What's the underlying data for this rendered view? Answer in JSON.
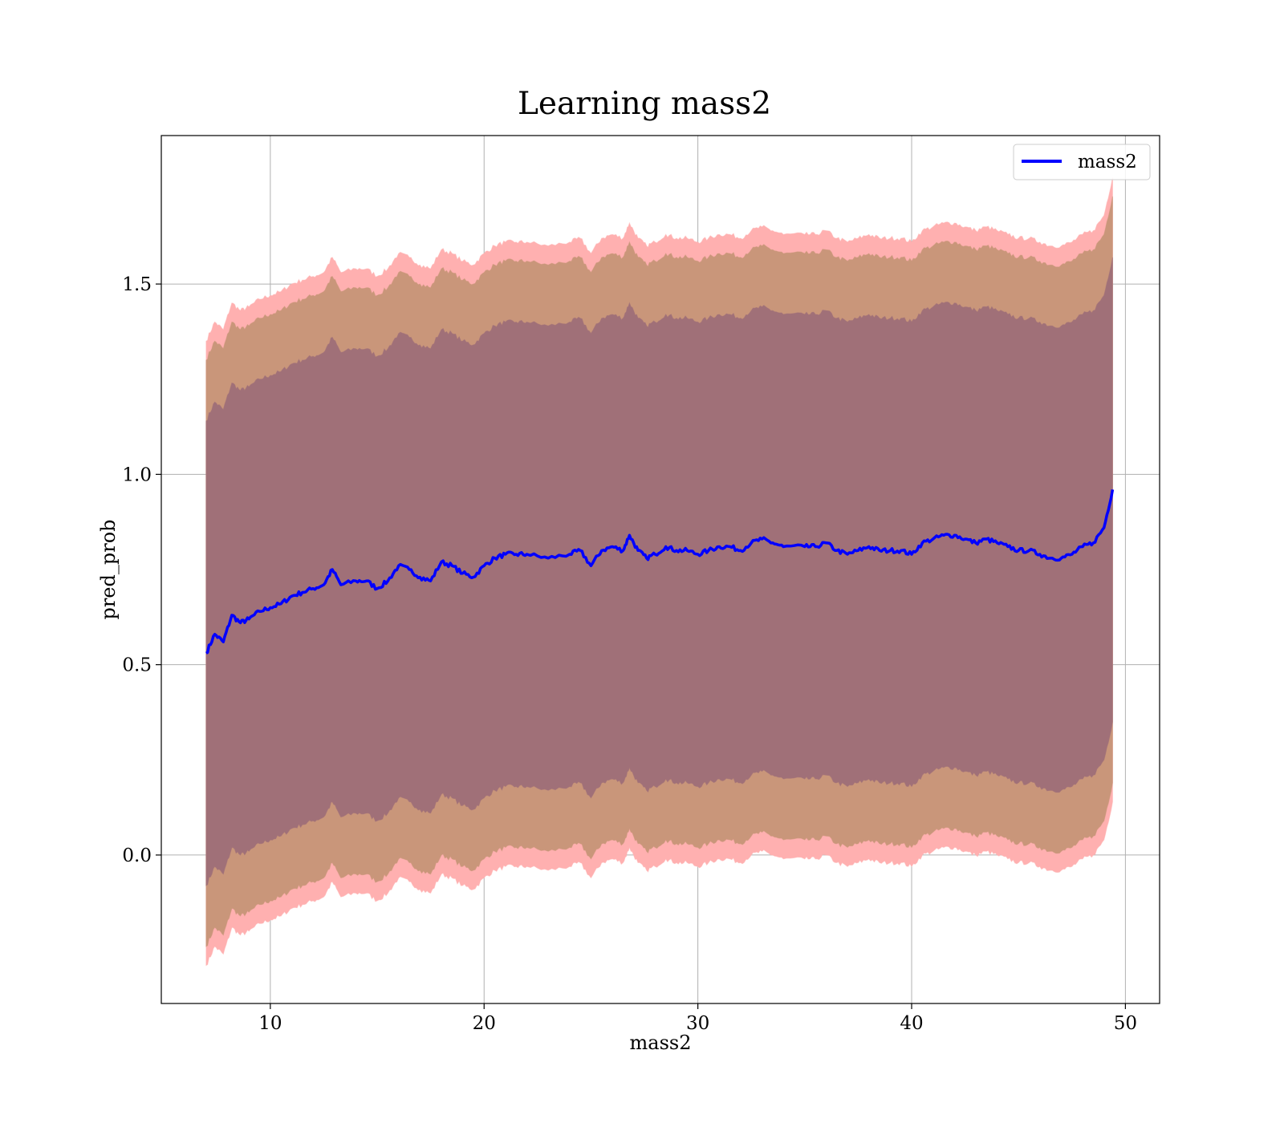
{
  "chart_data": {
    "type": "line",
    "title": "Learning mass2",
    "xlabel": "mass2",
    "ylabel": "pred_prob",
    "xlim": [
      4.9,
      51.6
    ],
    "ylim": [
      -0.39,
      1.89
    ],
    "xticks": [
      10,
      20,
      30,
      40,
      50
    ],
    "yticks": [
      0.0,
      0.5,
      1.0,
      1.5
    ],
    "grid": true,
    "legend": {
      "placement": "top-right",
      "entries": [
        "mass2"
      ]
    },
    "colors": {
      "mean_line": "#0000ff",
      "band_outer": "#ff0000",
      "band_middle": "#8b6a00",
      "band_inner": "#6a3a80"
    },
    "series": [
      {
        "name": "mass2",
        "x": [
          7.0,
          7.4,
          7.8,
          8.2,
          8.6,
          9.0,
          9.5,
          10.0,
          10.5,
          11.0,
          11.5,
          12.0,
          12.5,
          12.9,
          13.3,
          14.0,
          14.5,
          15.0,
          15.5,
          16.0,
          16.5,
          17.0,
          17.5,
          18.0,
          18.5,
          19.0,
          19.5,
          20.0,
          20.5,
          21.0,
          21.5,
          22.0,
          23.0,
          24.0,
          24.5,
          25.0,
          25.5,
          26.0,
          26.5,
          26.8,
          27.2,
          27.6,
          28.0,
          28.5,
          29.0,
          29.5,
          30.0,
          30.5,
          31.0,
          31.5,
          32.0,
          32.5,
          33.0,
          33.5,
          34.0,
          35.0,
          35.5,
          36.0,
          36.5,
          37.0,
          37.5,
          38.0,
          38.5,
          39.0,
          39.5,
          40.0,
          40.5,
          41.0,
          41.5,
          42.0,
          42.5,
          43.0,
          43.5,
          44.0,
          44.5,
          45.0,
          45.5,
          46.0,
          46.5,
          47.0,
          47.5,
          48.0,
          48.5,
          49.0,
          49.4
        ],
        "y": [
          0.53,
          0.58,
          0.56,
          0.63,
          0.61,
          0.62,
          0.64,
          0.65,
          0.66,
          0.68,
          0.69,
          0.7,
          0.71,
          0.75,
          0.71,
          0.72,
          0.72,
          0.7,
          0.72,
          0.76,
          0.75,
          0.73,
          0.72,
          0.77,
          0.76,
          0.74,
          0.73,
          0.76,
          0.78,
          0.79,
          0.79,
          0.79,
          0.78,
          0.79,
          0.8,
          0.76,
          0.8,
          0.81,
          0.8,
          0.84,
          0.8,
          0.78,
          0.79,
          0.81,
          0.8,
          0.8,
          0.79,
          0.8,
          0.81,
          0.81,
          0.8,
          0.82,
          0.83,
          0.82,
          0.81,
          0.81,
          0.81,
          0.82,
          0.8,
          0.79,
          0.8,
          0.81,
          0.8,
          0.8,
          0.8,
          0.79,
          0.82,
          0.83,
          0.84,
          0.84,
          0.83,
          0.82,
          0.83,
          0.82,
          0.81,
          0.8,
          0.8,
          0.79,
          0.78,
          0.78,
          0.79,
          0.81,
          0.82,
          0.86,
          0.96
        ],
        "band_inner_half_width": 0.61,
        "band_middle_half_width": 0.77,
        "band_outer_half_width": 0.82
      }
    ]
  }
}
